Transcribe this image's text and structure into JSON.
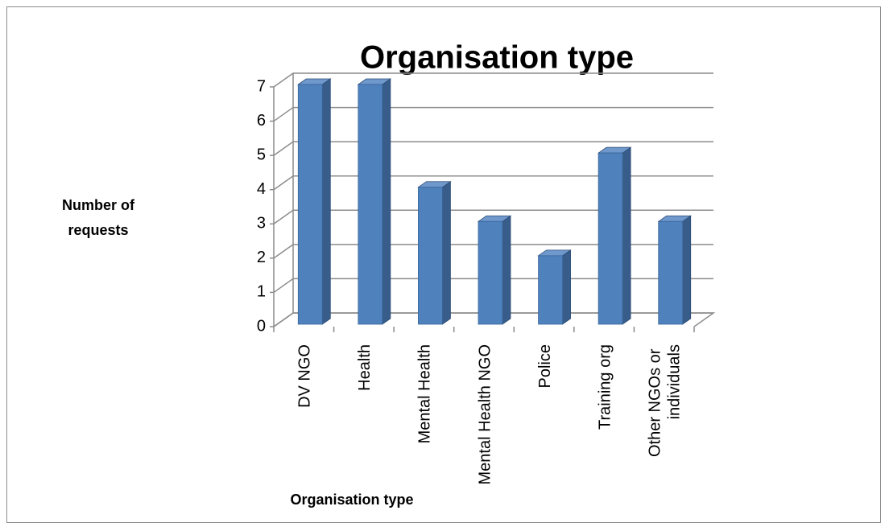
{
  "chart_data": {
    "type": "bar",
    "title": "Organisation type",
    "x_label": "Organisation type",
    "y_label": "Number of requests",
    "categories": [
      "DV NGO",
      "Health",
      "Mental Health",
      "Mental Health NGO",
      "Police",
      "Training org",
      "Other NGOs or individuals"
    ],
    "values": [
      7,
      7,
      4,
      3,
      2,
      5,
      3
    ],
    "color": "#4f81bd",
    "ylim": [
      0,
      7
    ],
    "yticks": [
      0,
      1,
      2,
      3,
      4,
      5,
      6,
      7
    ],
    "grid": true
  }
}
